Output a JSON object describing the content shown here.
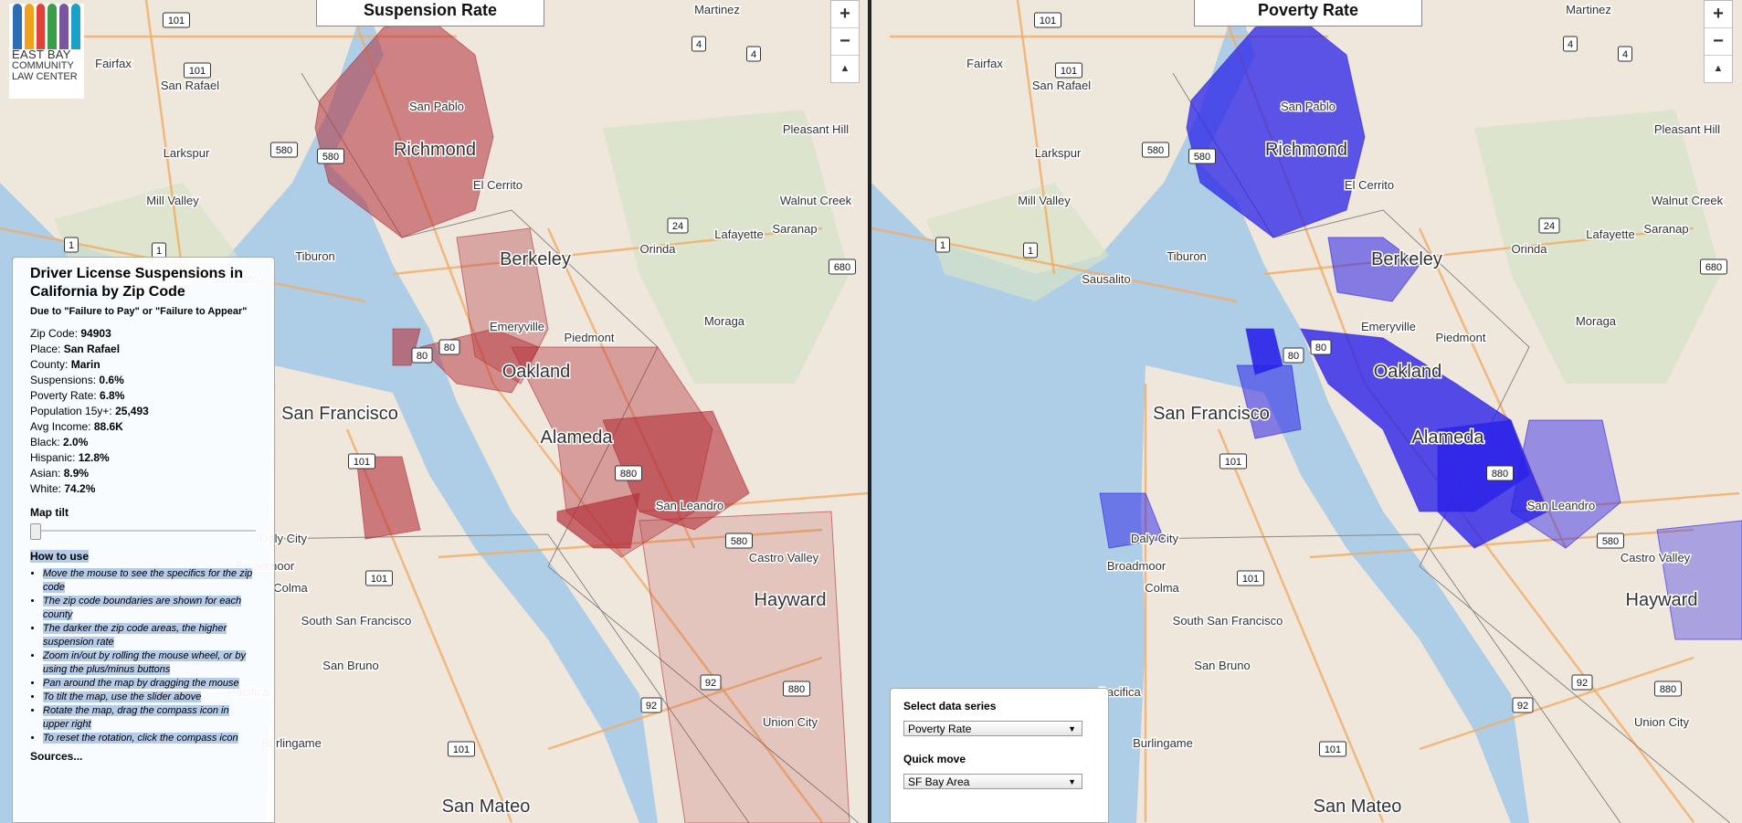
{
  "logo": {
    "line1": "EAST BAY",
    "line2": "COMMUNITY",
    "line3": "LAW CENTER",
    "bar_colors": [
      "#2e6db4",
      "#f0a21c",
      "#e2403a",
      "#3a9d47",
      "#7a55a2",
      "#1aa1c7"
    ]
  },
  "left_map": {
    "title": "Suspension Rate",
    "fill_color": "#b3303a"
  },
  "right_map": {
    "title": "Poverty Rate",
    "fill_color": "#2a22e8"
  },
  "zoom": {
    "in": "+",
    "out": "−",
    "compass": "▲"
  },
  "info": {
    "title": "Driver License Suspensions in California by Zip Code",
    "subtitle": "Due to \"Failure to Pay\" or \"Failure to Appear\"",
    "fields": [
      {
        "label": "Zip Code:",
        "value": "94903"
      },
      {
        "label": "Place:",
        "value": "San Rafael"
      },
      {
        "label": "County:",
        "value": "Marin"
      },
      {
        "label": "Suspensions:",
        "value": "0.6%"
      },
      {
        "label": "Poverty Rate:",
        "value": "6.8%"
      },
      {
        "label": "Population 15y+:",
        "value": "25,493"
      },
      {
        "label": "Avg Income:",
        "value": "88.6K"
      },
      {
        "label": "Black:",
        "value": "2.0%"
      },
      {
        "label": "Hispanic:",
        "value": "12.8%"
      },
      {
        "label": "Asian:",
        "value": "8.9%"
      },
      {
        "label": "White:",
        "value": "74.2%"
      }
    ],
    "tilt_label": "Map tilt",
    "tilt_value": 0,
    "howto_title": "How to use",
    "howto_items": [
      "Move the mouse to see the specifics for the zip code",
      "The zip code boundaries are shown for each county",
      "The darker the zip code areas, the higher suspension rate",
      "Zoom in/out by rolling the mouse wheel, or by using the plus/minus buttons",
      "Pan around the map by dragging the mouse",
      "To tilt the map, use the slider above",
      "Rotate the map, drag the compass icon in upper right",
      "To reset the rotation, click the compass icon"
    ],
    "sources": "Sources..."
  },
  "controls": {
    "series_label": "Select data series",
    "series_value": "Poverty Rate",
    "move_label": "Quick move",
    "move_value": "SF Bay Area"
  },
  "map_labels": {
    "cities_big": [
      "Richmond",
      "Berkeley",
      "Oakland",
      "San Francisco",
      "Alameda",
      "Hayward",
      "San Mateo"
    ],
    "cities": [
      "San Pablo",
      "El Cerrito",
      "Emeryville",
      "Piedmont",
      "Orinda",
      "Moraga",
      "Lafayette",
      "Walnut Creek",
      "Pleasant Hill",
      "Martinez",
      "San Rafael",
      "Larkspur",
      "Mill Valley",
      "Fairfax",
      "Tiburon",
      "San Leandro",
      "Castro Valley",
      "Union City",
      "Daly City",
      "South San Francisco",
      "San Bruno",
      "Burlingame",
      "Pacifica",
      "Colma",
      "Broadmoor",
      "Sausalito",
      "Saranap"
    ],
    "highways": [
      "101",
      "580",
      "80",
      "880",
      "24",
      "4",
      "1",
      "92",
      "680"
    ]
  }
}
